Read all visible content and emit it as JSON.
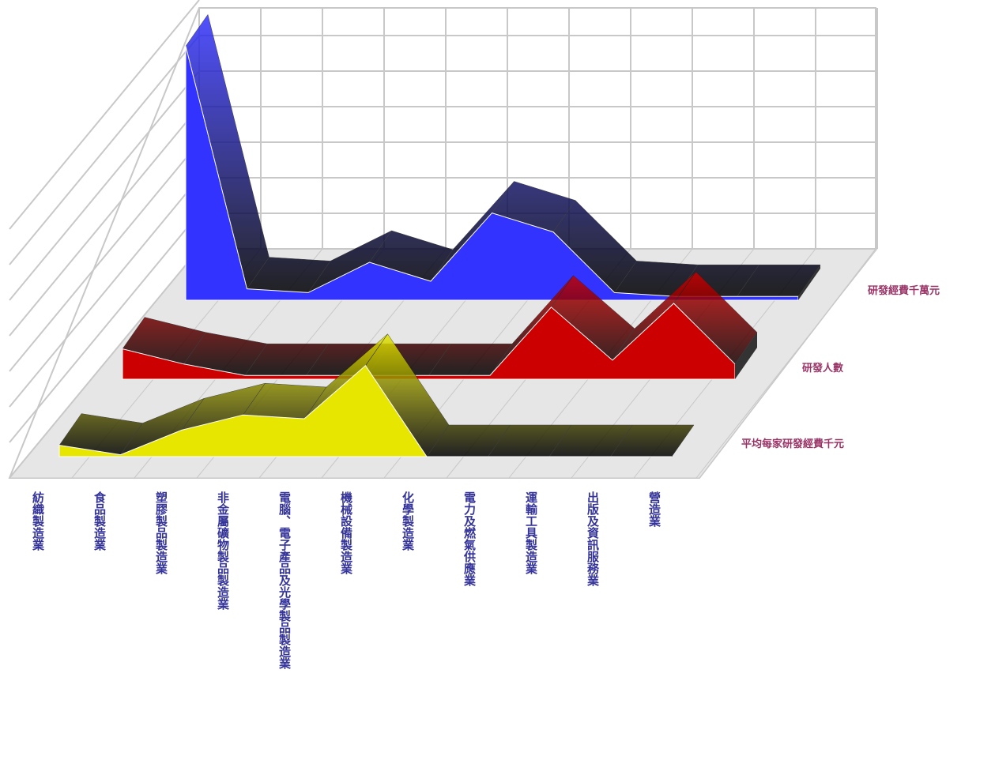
{
  "chart_data": {
    "type": "ribbon3d",
    "categories": [
      "紡織製造業",
      "食品製造業",
      "塑膠製品製造業",
      "非金屬礦物製品製造業",
      "電腦、電子產品及光學製品製造業",
      "機械設備製造業",
      "化學製造業",
      "電力及燃氣供應業",
      "運輸工具製造業",
      "出版及資訊服務業",
      "營造業"
    ],
    "series": [
      {
        "name": "研發經費千萬元",
        "color": "#3333ff",
        "values": [
          6.7,
          0.3,
          0.2,
          1.0,
          0.5,
          2.3,
          1.8,
          0.2,
          0.1,
          0.1,
          0.1
        ]
      },
      {
        "name": "研發人數",
        "color": "#cc0000",
        "values": [
          0.8,
          0.4,
          0.1,
          0.1,
          0.1,
          0.1,
          0.1,
          1.9,
          0.5,
          2.0,
          0.4
        ]
      },
      {
        "name": "平均每家研發經費千元",
        "color": "#e6e600",
        "values": [
          0.3,
          0.05,
          0.7,
          1.1,
          1.0,
          2.4,
          0,
          0,
          0,
          0,
          0
        ]
      }
    ],
    "ylim": [
      0,
      7
    ],
    "grid": true
  }
}
